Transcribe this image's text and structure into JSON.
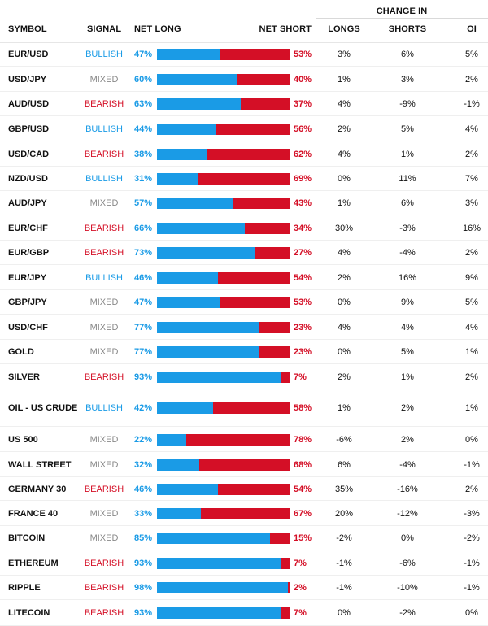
{
  "header": {
    "change_in": "CHANGE IN",
    "symbol": "SYMBOL",
    "signal": "SIGNAL",
    "net_long": "NET LONG",
    "net_short": "NET SHORT",
    "longs": "LONGS",
    "shorts": "SHORTS",
    "oi": "OI"
  },
  "colors": {
    "long": "#1a9be6",
    "short": "#d40f26",
    "mixed": "#888888"
  },
  "rows": [
    {
      "symbol": "EUR/USD",
      "signal": "BULLISH",
      "net_long": "47%",
      "long_pct": 47,
      "net_short": "53%",
      "longs": "3%",
      "shorts": "6%",
      "oi": "5%"
    },
    {
      "symbol": "USD/JPY",
      "signal": "MIXED",
      "net_long": "60%",
      "long_pct": 60,
      "net_short": "40%",
      "longs": "1%",
      "shorts": "3%",
      "oi": "2%"
    },
    {
      "symbol": "AUD/USD",
      "signal": "BEARISH",
      "net_long": "63%",
      "long_pct": 63,
      "net_short": "37%",
      "longs": "4%",
      "shorts": "-9%",
      "oi": "-1%"
    },
    {
      "symbol": "GBP/USD",
      "signal": "BULLISH",
      "net_long": "44%",
      "long_pct": 44,
      "net_short": "56%",
      "longs": "2%",
      "shorts": "5%",
      "oi": "4%"
    },
    {
      "symbol": "USD/CAD",
      "signal": "BEARISH",
      "net_long": "38%",
      "long_pct": 38,
      "net_short": "62%",
      "longs": "4%",
      "shorts": "1%",
      "oi": "2%"
    },
    {
      "symbol": "NZD/USD",
      "signal": "BULLISH",
      "net_long": "31%",
      "long_pct": 31,
      "net_short": "69%",
      "longs": "0%",
      "shorts": "11%",
      "oi": "7%"
    },
    {
      "symbol": "AUD/JPY",
      "signal": "MIXED",
      "net_long": "57%",
      "long_pct": 57,
      "net_short": "43%",
      "longs": "1%",
      "shorts": "6%",
      "oi": "3%"
    },
    {
      "symbol": "EUR/CHF",
      "signal": "BEARISH",
      "net_long": "66%",
      "long_pct": 66,
      "net_short": "34%",
      "longs": "30%",
      "shorts": "-3%",
      "oi": "16%"
    },
    {
      "symbol": "EUR/GBP",
      "signal": "BEARISH",
      "net_long": "73%",
      "long_pct": 73,
      "net_short": "27%",
      "longs": "4%",
      "shorts": "-4%",
      "oi": "2%"
    },
    {
      "symbol": "EUR/JPY",
      "signal": "BULLISH",
      "net_long": "46%",
      "long_pct": 46,
      "net_short": "54%",
      "longs": "2%",
      "shorts": "16%",
      "oi": "9%"
    },
    {
      "symbol": "GBP/JPY",
      "signal": "MIXED",
      "net_long": "47%",
      "long_pct": 47,
      "net_short": "53%",
      "longs": "0%",
      "shorts": "9%",
      "oi": "5%"
    },
    {
      "symbol": "USD/CHF",
      "signal": "MIXED",
      "net_long": "77%",
      "long_pct": 77,
      "net_short": "23%",
      "longs": "4%",
      "shorts": "4%",
      "oi": "4%"
    },
    {
      "symbol": "GOLD",
      "signal": "MIXED",
      "net_long": "77%",
      "long_pct": 77,
      "net_short": "23%",
      "longs": "0%",
      "shorts": "5%",
      "oi": "1%"
    },
    {
      "symbol": "SILVER",
      "signal": "BEARISH",
      "net_long": "93%",
      "long_pct": 93,
      "net_short": "7%",
      "longs": "2%",
      "shorts": "1%",
      "oi": "2%"
    },
    {
      "symbol": "OIL - US CRUDE",
      "signal": "BULLISH",
      "net_long": "42%",
      "long_pct": 42,
      "net_short": "58%",
      "longs": "1%",
      "shorts": "2%",
      "oi": "1%"
    },
    {
      "symbol": "US 500",
      "signal": "MIXED",
      "net_long": "22%",
      "long_pct": 22,
      "net_short": "78%",
      "longs": "-6%",
      "shorts": "2%",
      "oi": "0%"
    },
    {
      "symbol": "WALL STREET",
      "signal": "MIXED",
      "net_long": "32%",
      "long_pct": 32,
      "net_short": "68%",
      "longs": "6%",
      "shorts": "-4%",
      "oi": "-1%"
    },
    {
      "symbol": "GERMANY 30",
      "signal": "BEARISH",
      "net_long": "46%",
      "long_pct": 46,
      "net_short": "54%",
      "longs": "35%",
      "shorts": "-16%",
      "oi": "2%"
    },
    {
      "symbol": "FRANCE 40",
      "signal": "MIXED",
      "net_long": "33%",
      "long_pct": 33,
      "net_short": "67%",
      "longs": "20%",
      "shorts": "-12%",
      "oi": "-3%"
    },
    {
      "symbol": "BITCOIN",
      "signal": "MIXED",
      "net_long": "85%",
      "long_pct": 85,
      "net_short": "15%",
      "longs": "-2%",
      "shorts": "0%",
      "oi": "-2%"
    },
    {
      "symbol": "ETHEREUM",
      "signal": "BEARISH",
      "net_long": "93%",
      "long_pct": 93,
      "net_short": "7%",
      "longs": "-1%",
      "shorts": "-6%",
      "oi": "-1%"
    },
    {
      "symbol": "RIPPLE",
      "signal": "BEARISH",
      "net_long": "98%",
      "long_pct": 98,
      "net_short": "2%",
      "longs": "-1%",
      "shorts": "-10%",
      "oi": "-1%"
    },
    {
      "symbol": "LITECOIN",
      "signal": "BEARISH",
      "net_long": "93%",
      "long_pct": 93,
      "net_short": "7%",
      "longs": "0%",
      "shorts": "-2%",
      "oi": "0%"
    }
  ]
}
